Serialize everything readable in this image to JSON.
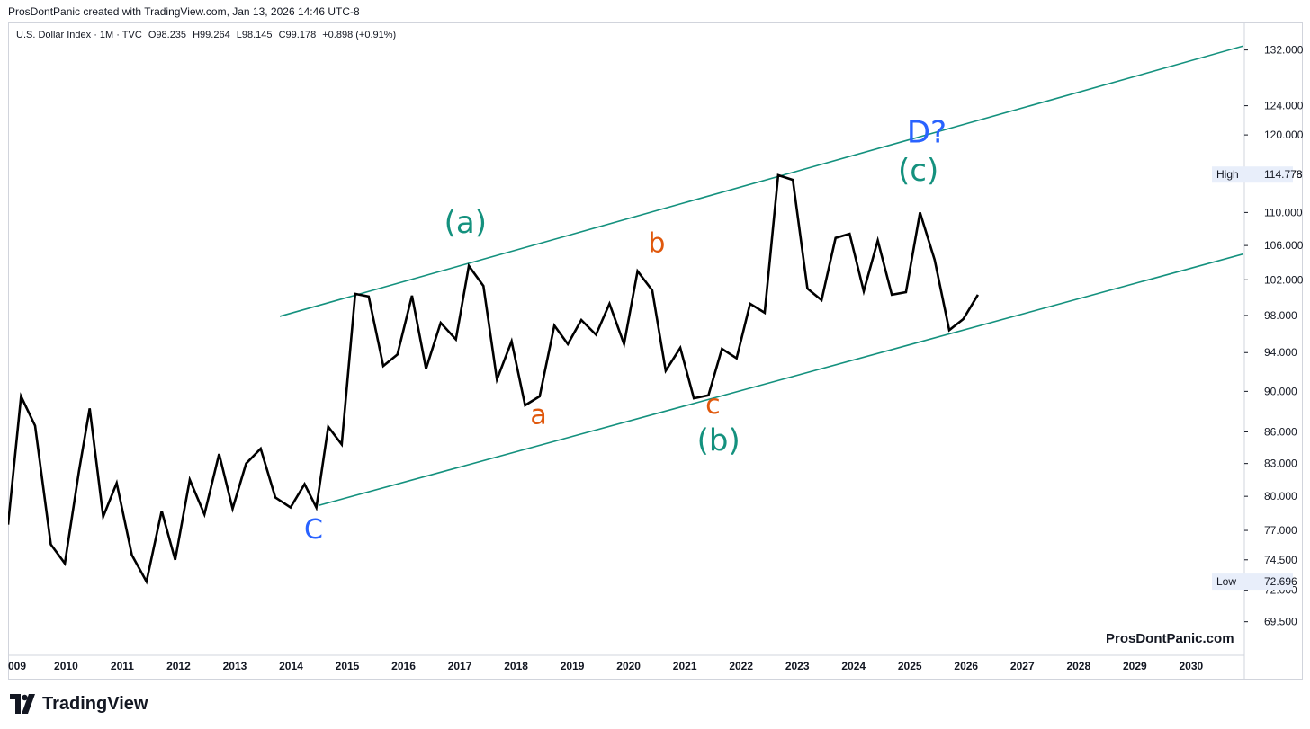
{
  "header": {
    "credit": "ProsDontPanic created with TradingView.com, Jan 13, 2026 14:46 UTC-8"
  },
  "symbol_bar": {
    "name": "U.S. Dollar Index · 1M · TVC",
    "o": "O98.235",
    "h": "H99.264",
    "l": "L98.145",
    "c": "C99.178",
    "change": "+0.898 (+0.91%)"
  },
  "watermark": "ProsDontPanic.com",
  "brand": {
    "name": "TradingView"
  },
  "chart_data": {
    "type": "line",
    "scale": "log",
    "ylim": [
      67,
      136
    ],
    "xlim": [
      2008.97,
      2030.93
    ],
    "y_ticks": [
      "69.500",
      "72.000",
      "74.500",
      "77.000",
      "80.000",
      "83.000",
      "86.000",
      "90.000",
      "94.000",
      "98.000",
      "102.000",
      "106.000",
      "110.000",
      "114.778",
      "120.000",
      "124.000",
      "132.000"
    ],
    "x_ticks": [
      "009",
      "2010",
      "2011",
      "2012",
      "2013",
      "2014",
      "2015",
      "2016",
      "2017",
      "2018",
      "2019",
      "2020",
      "2021",
      "2022",
      "2023",
      "2024",
      "2025",
      "2026",
      "2027",
      "2028",
      "2029",
      "2030"
    ],
    "series": [
      {
        "color": "#000000",
        "x": [
          2008.97,
          2009.2,
          2009.45,
          2009.73,
          2009.98,
          2010.23,
          2010.42,
          2010.66,
          2010.9,
          2011.17,
          2011.43,
          2011.7,
          2011.94,
          2012.2,
          2012.46,
          2012.72,
          2012.96,
          2013.2,
          2013.46,
          2013.72,
          2013.99,
          2014.24,
          2014.45,
          2014.66,
          2014.9,
          2015.14,
          2015.38,
          2015.64,
          2015.89,
          2016.15,
          2016.4,
          2016.66,
          2016.93,
          2017.16,
          2017.42,
          2017.66,
          2017.92,
          2018.16,
          2018.42,
          2018.68,
          2018.92,
          2019.16,
          2019.42,
          2019.66,
          2019.92,
          2020.16,
          2020.42,
          2020.66,
          2020.92,
          2021.16,
          2021.42,
          2021.66,
          2021.92,
          2022.16,
          2022.42,
          2022.66,
          2022.92,
          2023.18,
          2023.43,
          2023.68,
          2023.93,
          2024.18,
          2024.43,
          2024.68,
          2024.93,
          2025.18,
          2025.44,
          2025.7,
          2025.95,
          2026.21
        ],
        "y": [
          77.5,
          89.5,
          86.6,
          75.8,
          74.2,
          82.3,
          88.3,
          78.2,
          81.2,
          74.9,
          72.7,
          78.7,
          74.5,
          81.5,
          78.4,
          83.9,
          78.9,
          83.0,
          84.4,
          79.9,
          79.0,
          81.1,
          79.0,
          86.5,
          84.8,
          100.4,
          100.1,
          92.6,
          93.8,
          100.2,
          92.3,
          97.2,
          95.4,
          103.6,
          101.3,
          91.2,
          95.2,
          88.6,
          89.5,
          96.9,
          94.9,
          97.5,
          95.9,
          99.3,
          94.9,
          103.0,
          100.8,
          92.1,
          94.5,
          89.3,
          89.6,
          94.4,
          93.4,
          99.3,
          98.3,
          114.7,
          114.1,
          101.0,
          99.7,
          106.9,
          107.4,
          100.7,
          106.6,
          100.3,
          100.6,
          110.0,
          104.3,
          96.4,
          97.6,
          100.3
        ]
      }
    ],
    "trend_lines": [
      {
        "color": "#14917e",
        "x": [
          2013.8,
          2030.93
        ],
        "y": [
          97.9,
          132.6
        ]
      },
      {
        "color": "#14917e",
        "x": [
          2014.5,
          2030.93
        ],
        "y": [
          79.2,
          105.0
        ]
      }
    ],
    "annotations": [
      {
        "text": "C",
        "x": 2014.4,
        "y": 76.3,
        "color": "#2962ff"
      },
      {
        "text": "(a)",
        "x": 2017.1,
        "y": 107.5,
        "color": "#14917e"
      },
      {
        "text": "a",
        "x": 2018.4,
        "y": 86.8,
        "color": "#e0580c"
      },
      {
        "text": "b",
        "x": 2020.5,
        "y": 105.2,
        "color": "#e0580c"
      },
      {
        "text": "c",
        "x": 2021.5,
        "y": 87.8,
        "color": "#e0580c"
      },
      {
        "text": "(b)",
        "x": 2021.6,
        "y": 84.2,
        "color": "#14917e"
      },
      {
        "text": "(c)",
        "x": 2025.15,
        "y": 114.0,
        "color": "#14917e"
      },
      {
        "text": "D?",
        "x": 2025.3,
        "y": 119.0,
        "color": "#2962ff"
      }
    ],
    "markers": [
      {
        "label": "High",
        "value": "114.778",
        "y": 114.778
      },
      {
        "label": "Low",
        "value": "72.696",
        "y": 72.696
      }
    ]
  }
}
